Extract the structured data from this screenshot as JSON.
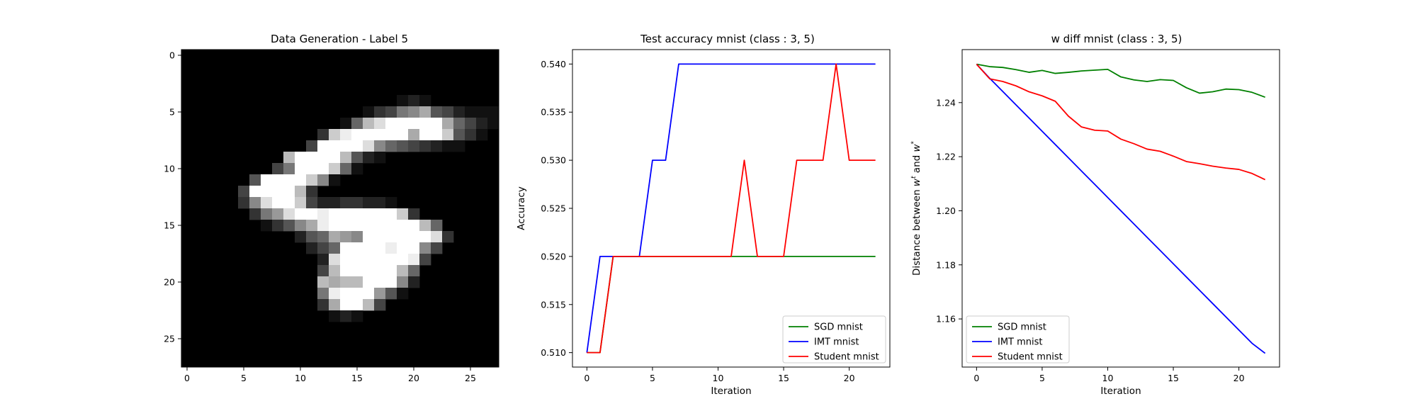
{
  "chart_data": [
    {
      "type": "heatmap",
      "title": "Data Generation - Label 5",
      "xticks": [
        0,
        5,
        10,
        15,
        20,
        25
      ],
      "yticks": [
        0,
        5,
        10,
        15,
        20,
        25
      ],
      "xlim": [
        -0.5,
        27.5
      ],
      "ylim": [
        27.5,
        -0.5
      ],
      "colormap": "gray",
      "image": [
        "0000000000000000000000000000",
        "0000000000000000000000000000",
        "0000000000000000000000000000",
        "0000000000000000000000000000",
        "0000000000000000000121000000",
        "000000000000000013478a542111",
        "0000000000000016bdfffffa6421",
        "0000000000003cefffffaffc5310",
        "000000000004ffffd8654321100",
        "000000000bffffb5210000000000",
        "0000000047fffc6100000000000",
        "0000005ffffc81000000000000000",
        "000004ffffb3000000000000000",
        "0000038dffc42233221000000000",
        "000000379dffeffffffc300000000",
        "00000001358aeffffffffb6000000",
        "0000000000256a98ffffffd300000",
        "00000000000246ffffeff84000000",
        "0000000000002dffffffe4000000",
        "0000000000004bfffffb600000000",
        "000000000000babbfff8200000000",
        "0000000000007efff9510000000",
        "0000000000003affb4000000000",
        "0000000000000121000000000000",
        "0000000000000000000000000000",
        "0000000000000000000000000000",
        "0000000000000000000000000000",
        "0000000000000000000000000000"
      ]
    },
    {
      "type": "line",
      "title": "Test accuracy mnist (class : 3, 5)",
      "xlabel": "Iteration",
      "ylabel": "Accuracy",
      "xlim": [
        -1.1,
        23.1
      ],
      "ylim": [
        0.5085,
        0.5415
      ],
      "xticks": [
        0,
        5,
        10,
        15,
        20
      ],
      "yticks": [
        0.51,
        0.515,
        0.52,
        0.525,
        0.53,
        0.535,
        0.54
      ],
      "ytick_labels": [
        "0.510",
        "0.515",
        "0.520",
        "0.525",
        "0.530",
        "0.535",
        "0.540"
      ],
      "legend": "lower-right",
      "x": [
        0,
        1,
        2,
        3,
        4,
        5,
        6,
        7,
        8,
        9,
        10,
        11,
        12,
        13,
        14,
        15,
        16,
        17,
        18,
        19,
        20,
        21,
        22
      ],
      "series": [
        {
          "name": "SGD mnist",
          "color": "#008000",
          "values": [
            0.51,
            0.51,
            0.52,
            0.52,
            0.52,
            0.52,
            0.52,
            0.52,
            0.52,
            0.52,
            0.52,
            0.52,
            0.52,
            0.52,
            0.52,
            0.52,
            0.52,
            0.52,
            0.52,
            0.52,
            0.52,
            0.52,
            0.52
          ]
        },
        {
          "name": "IMT mnist",
          "color": "#0000ff",
          "values": [
            0.51,
            0.52,
            0.52,
            0.52,
            0.52,
            0.53,
            0.53,
            0.54,
            0.54,
            0.54,
            0.54,
            0.54,
            0.54,
            0.54,
            0.54,
            0.54,
            0.54,
            0.54,
            0.54,
            0.54,
            0.54,
            0.54,
            0.54
          ]
        },
        {
          "name": "Student mnist",
          "color": "#ff0000",
          "values": [
            0.51,
            0.51,
            0.52,
            0.52,
            0.52,
            0.52,
            0.52,
            0.52,
            0.52,
            0.52,
            0.52,
            0.52,
            0.53,
            0.52,
            0.52,
            0.52,
            0.53,
            0.53,
            0.53,
            0.54,
            0.53,
            0.53,
            0.53
          ]
        }
      ]
    },
    {
      "type": "line",
      "title": "w diff mnist (class : 3, 5)",
      "xlabel": "Iteration",
      "ylabel_parts": [
        "Distance between ",
        "w",
        "t",
        " and ",
        "w",
        "*"
      ],
      "xlim": [
        -1.1,
        23.1
      ],
      "ylim": [
        1.1422,
        1.2596
      ],
      "xticks": [
        0,
        5,
        10,
        15,
        20
      ],
      "yticks": [
        1.16,
        1.18,
        1.2,
        1.22,
        1.24
      ],
      "ytick_labels": [
        "1.16",
        "1.18",
        "1.20",
        "1.22",
        "1.24"
      ],
      "legend": "lower-left",
      "x": [
        0,
        1,
        2,
        3,
        4,
        5,
        6,
        7,
        8,
        9,
        10,
        11,
        12,
        13,
        14,
        15,
        16,
        17,
        18,
        19,
        20,
        21,
        22
      ],
      "series": [
        {
          "name": "SGD mnist",
          "color": "#008000",
          "values": [
            1.2542,
            1.2533,
            1.253,
            1.2522,
            1.2512,
            1.2519,
            1.2508,
            1.2512,
            1.2517,
            1.252,
            1.2523,
            1.2495,
            1.2484,
            1.2478,
            1.2485,
            1.2482,
            1.2455,
            1.2435,
            1.244,
            1.245,
            1.2448,
            1.2438,
            1.242
          ]
        },
        {
          "name": "IMT mnist",
          "color": "#0000ff",
          "values": [
            1.2542,
            1.249,
            1.2441,
            1.2392,
            1.2343,
            1.2294,
            1.2245,
            1.2196,
            1.2147,
            1.2098,
            1.2049,
            1.2,
            1.1951,
            1.1902,
            1.1853,
            1.1804,
            1.1755,
            1.1706,
            1.1657,
            1.1608,
            1.1559,
            1.151,
            1.1473
          ]
        },
        {
          "name": "Student mnist",
          "color": "#ff0000",
          "values": [
            1.2542,
            1.2488,
            1.2478,
            1.2462,
            1.244,
            1.2425,
            1.2405,
            1.235,
            1.231,
            1.2298,
            1.2295,
            1.2265,
            1.2248,
            1.2228,
            1.222,
            1.2202,
            1.2182,
            1.2174,
            1.2165,
            1.2158,
            1.2153,
            1.2138,
            1.2115
          ]
        }
      ]
    }
  ]
}
